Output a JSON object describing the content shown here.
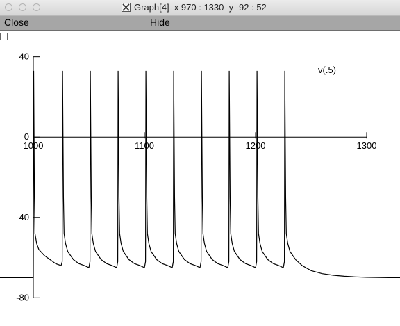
{
  "window": {
    "title": "Graph[4]  x 970 : 1330  y -92 : 52"
  },
  "menu": {
    "close_label": "Close",
    "hide_label": "Hide"
  },
  "chart_data": {
    "type": "line",
    "title": "",
    "xlabel": "",
    "ylabel": "",
    "xlim": [
      970,
      1330
    ],
    "ylim": [
      -92,
      52
    ],
    "x_axis": {
      "range": [
        1000,
        1300
      ],
      "ticks": [
        1000,
        1100,
        1200,
        1300
      ],
      "at_y": 0
    },
    "y_axis": {
      "range": [
        -80,
        40
      ],
      "ticks": [
        40,
        0,
        -40,
        -80
      ],
      "at_x": 1000
    },
    "series": [
      {
        "name": "v(.5)",
        "color": "#000000",
        "resting_potential": -70,
        "x": [
          970,
          1000,
          1000.3,
          1001,
          1001.5,
          1003,
          1005,
          1010,
          1015,
          1020,
          1025,
          1026,
          1026.3,
          1027.1,
          1027.7,
          1029,
          1031,
          1036,
          1041,
          1046,
          1050,
          1051,
          1051.3,
          1052.1,
          1052.7,
          1054,
          1056,
          1061,
          1066,
          1071,
          1075,
          1076,
          1076.3,
          1077.1,
          1077.7,
          1079,
          1081,
          1086,
          1091,
          1096,
          1100,
          1101,
          1101.3,
          1102.1,
          1102.7,
          1104,
          1106,
          1111,
          1116,
          1121,
          1125,
          1126,
          1126.3,
          1127.1,
          1127.7,
          1129,
          1131,
          1136,
          1141,
          1146,
          1150,
          1151,
          1151.3,
          1152.1,
          1152.7,
          1154,
          1156,
          1161,
          1166,
          1171,
          1175,
          1176,
          1176.3,
          1177.1,
          1177.7,
          1179,
          1181,
          1186,
          1191,
          1196,
          1200,
          1201,
          1201.3,
          1202.1,
          1202.7,
          1204,
          1206,
          1211,
          1216,
          1221,
          1225,
          1226,
          1226.3,
          1227.1,
          1227.7,
          1229,
          1231,
          1236,
          1242,
          1250,
          1260,
          1270,
          1280,
          1290,
          1300,
          1310,
          1320,
          1330
        ],
        "y": [
          -70,
          -70,
          33,
          -30,
          -48,
          -53,
          -56,
          -59,
          -61,
          -63,
          -64,
          -62,
          33,
          -30,
          -48,
          -53,
          -57,
          -61,
          -63,
          -64,
          -65,
          -62,
          33,
          -30,
          -48,
          -53,
          -57,
          -61,
          -63,
          -64,
          -65,
          -62,
          33,
          -30,
          -48,
          -53,
          -57,
          -61,
          -63,
          -64,
          -65,
          -62,
          33,
          -30,
          -48,
          -53,
          -57,
          -61,
          -63,
          -64,
          -65,
          -62,
          33,
          -30,
          -48,
          -53,
          -57,
          -61,
          -63,
          -64,
          -65,
          -62,
          33,
          -30,
          -48,
          -53,
          -57,
          -61,
          -63,
          -64,
          -65,
          -62,
          33,
          -30,
          -48,
          -53,
          -57,
          -61,
          -63,
          -64,
          -65,
          -62,
          33,
          -30,
          -48,
          -53,
          -57,
          -61,
          -63,
          -64,
          -65,
          -62,
          33,
          -30,
          -48,
          -53,
          -57,
          -61,
          -64,
          -66.5,
          -68,
          -68.8,
          -69.3,
          -69.6,
          -69.8,
          -69.9,
          -70,
          -70
        ]
      }
    ],
    "legend": {
      "text": "v(.5)",
      "position": "top-right"
    },
    "grid": false
  }
}
